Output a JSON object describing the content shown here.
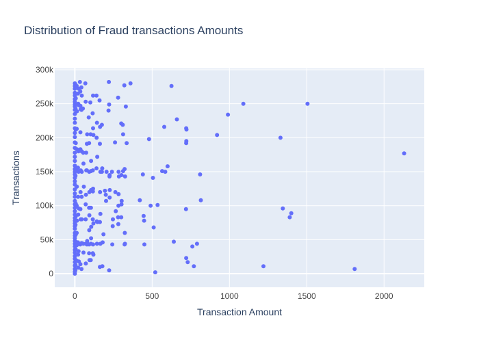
{
  "chart_data": {
    "type": "scatter",
    "title": "Distribution of Fraud transactions Amounts",
    "xlabel": "Transaction Amount",
    "ylabel": "Transactions",
    "xlim": [
      -130,
      2260
    ],
    "ylim": [
      -20000,
      302000
    ],
    "x_ticks": [
      0,
      500,
      1000,
      1500,
      2000
    ],
    "y_ticks": [
      0,
      50000,
      100000,
      150000,
      200000,
      250000,
      300000
    ],
    "x_tick_labels": [
      "0",
      "500",
      "1000",
      "1500",
      "2000"
    ],
    "y_tick_labels": [
      "0",
      "50k",
      "100k",
      "150k",
      "200k",
      "250k",
      "300k"
    ],
    "grid": true,
    "colors": {
      "plot_bg": "#E5ECF6",
      "grid": "#FFFFFF",
      "marker": "#636EFA"
    },
    "points": [
      [
        0,
        280000
      ],
      [
        0,
        276000
      ],
      [
        0,
        272000
      ],
      [
        0,
        266000
      ],
      [
        0,
        262000
      ],
      [
        0,
        257000
      ],
      [
        0,
        253000
      ],
      [
        0,
        249000
      ],
      [
        0,
        246000
      ],
      [
        0,
        241000
      ],
      [
        0,
        235000
      ],
      [
        0,
        228000
      ],
      [
        0,
        222000
      ],
      [
        0,
        214000
      ],
      [
        0,
        207000
      ],
      [
        0,
        201000
      ],
      [
        0,
        193000
      ],
      [
        0,
        185000
      ],
      [
        0,
        178000
      ],
      [
        0,
        172000
      ],
      [
        0,
        166000
      ],
      [
        0,
        159000
      ],
      [
        0,
        154000
      ],
      [
        0,
        150000
      ],
      [
        0,
        146000
      ],
      [
        0,
        141000
      ],
      [
        0,
        136000
      ],
      [
        0,
        131000
      ],
      [
        0,
        124000
      ],
      [
        0,
        118000
      ],
      [
        0,
        113000
      ],
      [
        0,
        107000
      ],
      [
        0,
        102000
      ],
      [
        0,
        97000
      ],
      [
        0,
        92000
      ],
      [
        0,
        87000
      ],
      [
        0,
        82000
      ],
      [
        0,
        78000
      ],
      [
        0,
        74000
      ],
      [
        0,
        70000
      ],
      [
        0,
        66000
      ],
      [
        0,
        60000
      ],
      [
        0,
        56000
      ],
      [
        0,
        52000
      ],
      [
        0,
        48000
      ],
      [
        0,
        44000
      ],
      [
        0,
        40000
      ],
      [
        0,
        35000
      ],
      [
        0,
        31000
      ],
      [
        0,
        26000
      ],
      [
        0,
        22000
      ],
      [
        0,
        17000
      ],
      [
        0,
        12000
      ],
      [
        0,
        7000
      ],
      [
        0,
        3000
      ],
      [
        0,
        0
      ],
      [
        5,
        278000
      ],
      [
        6,
        258000
      ],
      [
        4,
        243000
      ],
      [
        5,
        212000
      ],
      [
        6,
        192000
      ],
      [
        5,
        156000
      ],
      [
        4,
        144000
      ],
      [
        6,
        103000
      ],
      [
        5,
        84000
      ],
      [
        4,
        72000
      ],
      [
        5,
        57000
      ],
      [
        6,
        47000
      ],
      [
        5,
        36000
      ],
      [
        4,
        13000
      ],
      [
        3,
        5000
      ],
      [
        12,
        276000
      ],
      [
        14,
        239000
      ],
      [
        12,
        213000
      ],
      [
        14,
        183000
      ],
      [
        12,
        152000
      ],
      [
        13,
        128000
      ],
      [
        12,
        100000
      ],
      [
        14,
        78000
      ],
      [
        12,
        60000
      ],
      [
        13,
        42000
      ],
      [
        12,
        19000
      ],
      [
        20,
        265000
      ],
      [
        22,
        250000
      ],
      [
        20,
        156000
      ],
      [
        21,
        113000
      ],
      [
        22,
        87000
      ],
      [
        20,
        46000
      ],
      [
        21,
        28000
      ],
      [
        22,
        9000
      ],
      [
        25,
        272000
      ],
      [
        25,
        248000
      ],
      [
        24,
        180000
      ],
      [
        24,
        150000
      ],
      [
        26,
        96000
      ],
      [
        25,
        44000
      ],
      [
        24,
        33000
      ],
      [
        26,
        18000
      ],
      [
        33,
        282000
      ],
      [
        35,
        268000
      ],
      [
        36,
        247000
      ],
      [
        38,
        242000
      ],
      [
        36,
        208000
      ],
      [
        36,
        183000
      ],
      [
        38,
        152000
      ],
      [
        37,
        120000
      ],
      [
        36,
        95000
      ],
      [
        38,
        80000
      ],
      [
        35,
        43000
      ],
      [
        36,
        14000
      ],
      [
        42,
        274000
      ],
      [
        45,
        262000
      ],
      [
        43,
        241000
      ],
      [
        44,
        180000
      ],
      [
        45,
        150000
      ],
      [
        44,
        113000
      ],
      [
        45,
        80000
      ],
      [
        44,
        45000
      ],
      [
        43,
        7000
      ],
      [
        52,
        243000
      ],
      [
        54,
        178000
      ],
      [
        56,
        162000
      ],
      [
        58,
        128000
      ],
      [
        55,
        44000
      ],
      [
        56,
        31000
      ],
      [
        68,
        280000
      ],
      [
        70,
        253000
      ],
      [
        73,
        178000
      ],
      [
        74,
        152000
      ],
      [
        72,
        116000
      ],
      [
        70,
        102000
      ],
      [
        70,
        80000
      ],
      [
        72,
        44000
      ],
      [
        71,
        15000
      ],
      [
        78,
        191000
      ],
      [
        80,
        205000
      ],
      [
        78,
        152000
      ],
      [
        80,
        48000
      ],
      [
        79,
        45000
      ],
      [
        78,
        43000
      ],
      [
        90,
        230000
      ],
      [
        92,
        192000
      ],
      [
        93,
        150000
      ],
      [
        94,
        120000
      ],
      [
        92,
        97000
      ],
      [
        94,
        86000
      ],
      [
        93,
        64000
      ],
      [
        92,
        43000
      ],
      [
        92,
        30000
      ],
      [
        95,
        20000
      ],
      [
        100,
        252000
      ],
      [
        102,
        205000
      ],
      [
        105,
        166000
      ],
      [
        104,
        151000
      ],
      [
        105,
        123000
      ],
      [
        104,
        97000
      ],
      [
        106,
        69000
      ],
      [
        105,
        52000
      ],
      [
        104,
        44000
      ],
      [
        103,
        20000
      ],
      [
        118,
        262000
      ],
      [
        115,
        236000
      ],
      [
        118,
        214000
      ],
      [
        120,
        204000
      ],
      [
        116,
        152000
      ],
      [
        118,
        125000
      ],
      [
        117,
        121000
      ],
      [
        116,
        80000
      ],
      [
        120,
        74000
      ],
      [
        118,
        43000
      ],
      [
        116,
        30000
      ],
      [
        120,
        28000
      ],
      [
        140,
        262000
      ],
      [
        143,
        222000
      ],
      [
        141,
        200000
      ],
      [
        145,
        172000
      ],
      [
        140,
        155000
      ],
      [
        142,
        77000
      ],
      [
        146,
        76000
      ],
      [
        143,
        44000
      ],
      [
        160,
        255000
      ],
      [
        163,
        216000
      ],
      [
        162,
        191000
      ],
      [
        165,
        150000
      ],
      [
        163,
        120000
      ],
      [
        165,
        88000
      ],
      [
        162,
        76000
      ],
      [
        165,
        44000
      ],
      [
        162,
        10000
      ],
      [
        175,
        219000
      ],
      [
        177,
        155000
      ],
      [
        175,
        150000
      ],
      [
        178,
        11000
      ],
      [
        180,
        46000
      ],
      [
        185,
        58000
      ],
      [
        195,
        122000
      ],
      [
        200,
        116000
      ],
      [
        202,
        107000
      ],
      [
        205,
        150000
      ],
      [
        220,
        282000
      ],
      [
        222,
        249000
      ],
      [
        218,
        240000
      ],
      [
        225,
        145000
      ],
      [
        224,
        143000
      ],
      [
        225,
        112000
      ],
      [
        226,
        123000
      ],
      [
        222,
        5000
      ],
      [
        240,
        150000
      ],
      [
        245,
        70000
      ],
      [
        242,
        43000
      ],
      [
        246,
        80000
      ],
      [
        260,
        193000
      ],
      [
        262,
        120000
      ],
      [
        265,
        92000
      ],
      [
        280,
        259000
      ],
      [
        283,
        150000
      ],
      [
        285,
        143000
      ],
      [
        283,
        117000
      ],
      [
        282,
        100000
      ],
      [
        280,
        83000
      ],
      [
        281,
        73000
      ],
      [
        300,
        221000
      ],
      [
        302,
        145000
      ],
      [
        303,
        107000
      ],
      [
        302,
        102000
      ],
      [
        300,
        83000
      ],
      [
        310,
        219000
      ],
      [
        312,
        205000
      ],
      [
        312,
        151000
      ],
      [
        320,
        277000
      ],
      [
        322,
        154000
      ],
      [
        325,
        143000
      ],
      [
        323,
        60000
      ],
      [
        322,
        43000
      ],
      [
        324,
        44000
      ],
      [
        330,
        246000
      ],
      [
        335,
        192000
      ],
      [
        360,
        280000
      ],
      [
        420,
        108000
      ],
      [
        440,
        146000
      ],
      [
        445,
        85000
      ],
      [
        448,
        78000
      ],
      [
        450,
        43000
      ],
      [
        480,
        198000
      ],
      [
        490,
        100000
      ],
      [
        505,
        141000
      ],
      [
        510,
        68000
      ],
      [
        520,
        2000
      ],
      [
        535,
        101000
      ],
      [
        565,
        151000
      ],
      [
        578,
        216000
      ],
      [
        585,
        150000
      ],
      [
        600,
        158000
      ],
      [
        625,
        276000
      ],
      [
        640,
        47000
      ],
      [
        660,
        227000
      ],
      [
        720,
        214000
      ],
      [
        721,
        195000
      ],
      [
        722,
        212000
      ],
      [
        720,
        192000
      ],
      [
        719,
        95000
      ],
      [
        720,
        23000
      ],
      [
        730,
        17000
      ],
      [
        760,
        40000
      ],
      [
        770,
        11000
      ],
      [
        790,
        44000
      ],
      [
        810,
        146000
      ],
      [
        815,
        108000
      ],
      [
        920,
        204000
      ],
      [
        990,
        234000
      ],
      [
        1090,
        250000
      ],
      [
        1220,
        11000
      ],
      [
        1330,
        200000
      ],
      [
        1345,
        96000
      ],
      [
        1390,
        83000
      ],
      [
        1400,
        89000
      ],
      [
        1505,
        250000
      ],
      [
        1810,
        7000
      ],
      [
        2130,
        177000
      ]
    ]
  }
}
